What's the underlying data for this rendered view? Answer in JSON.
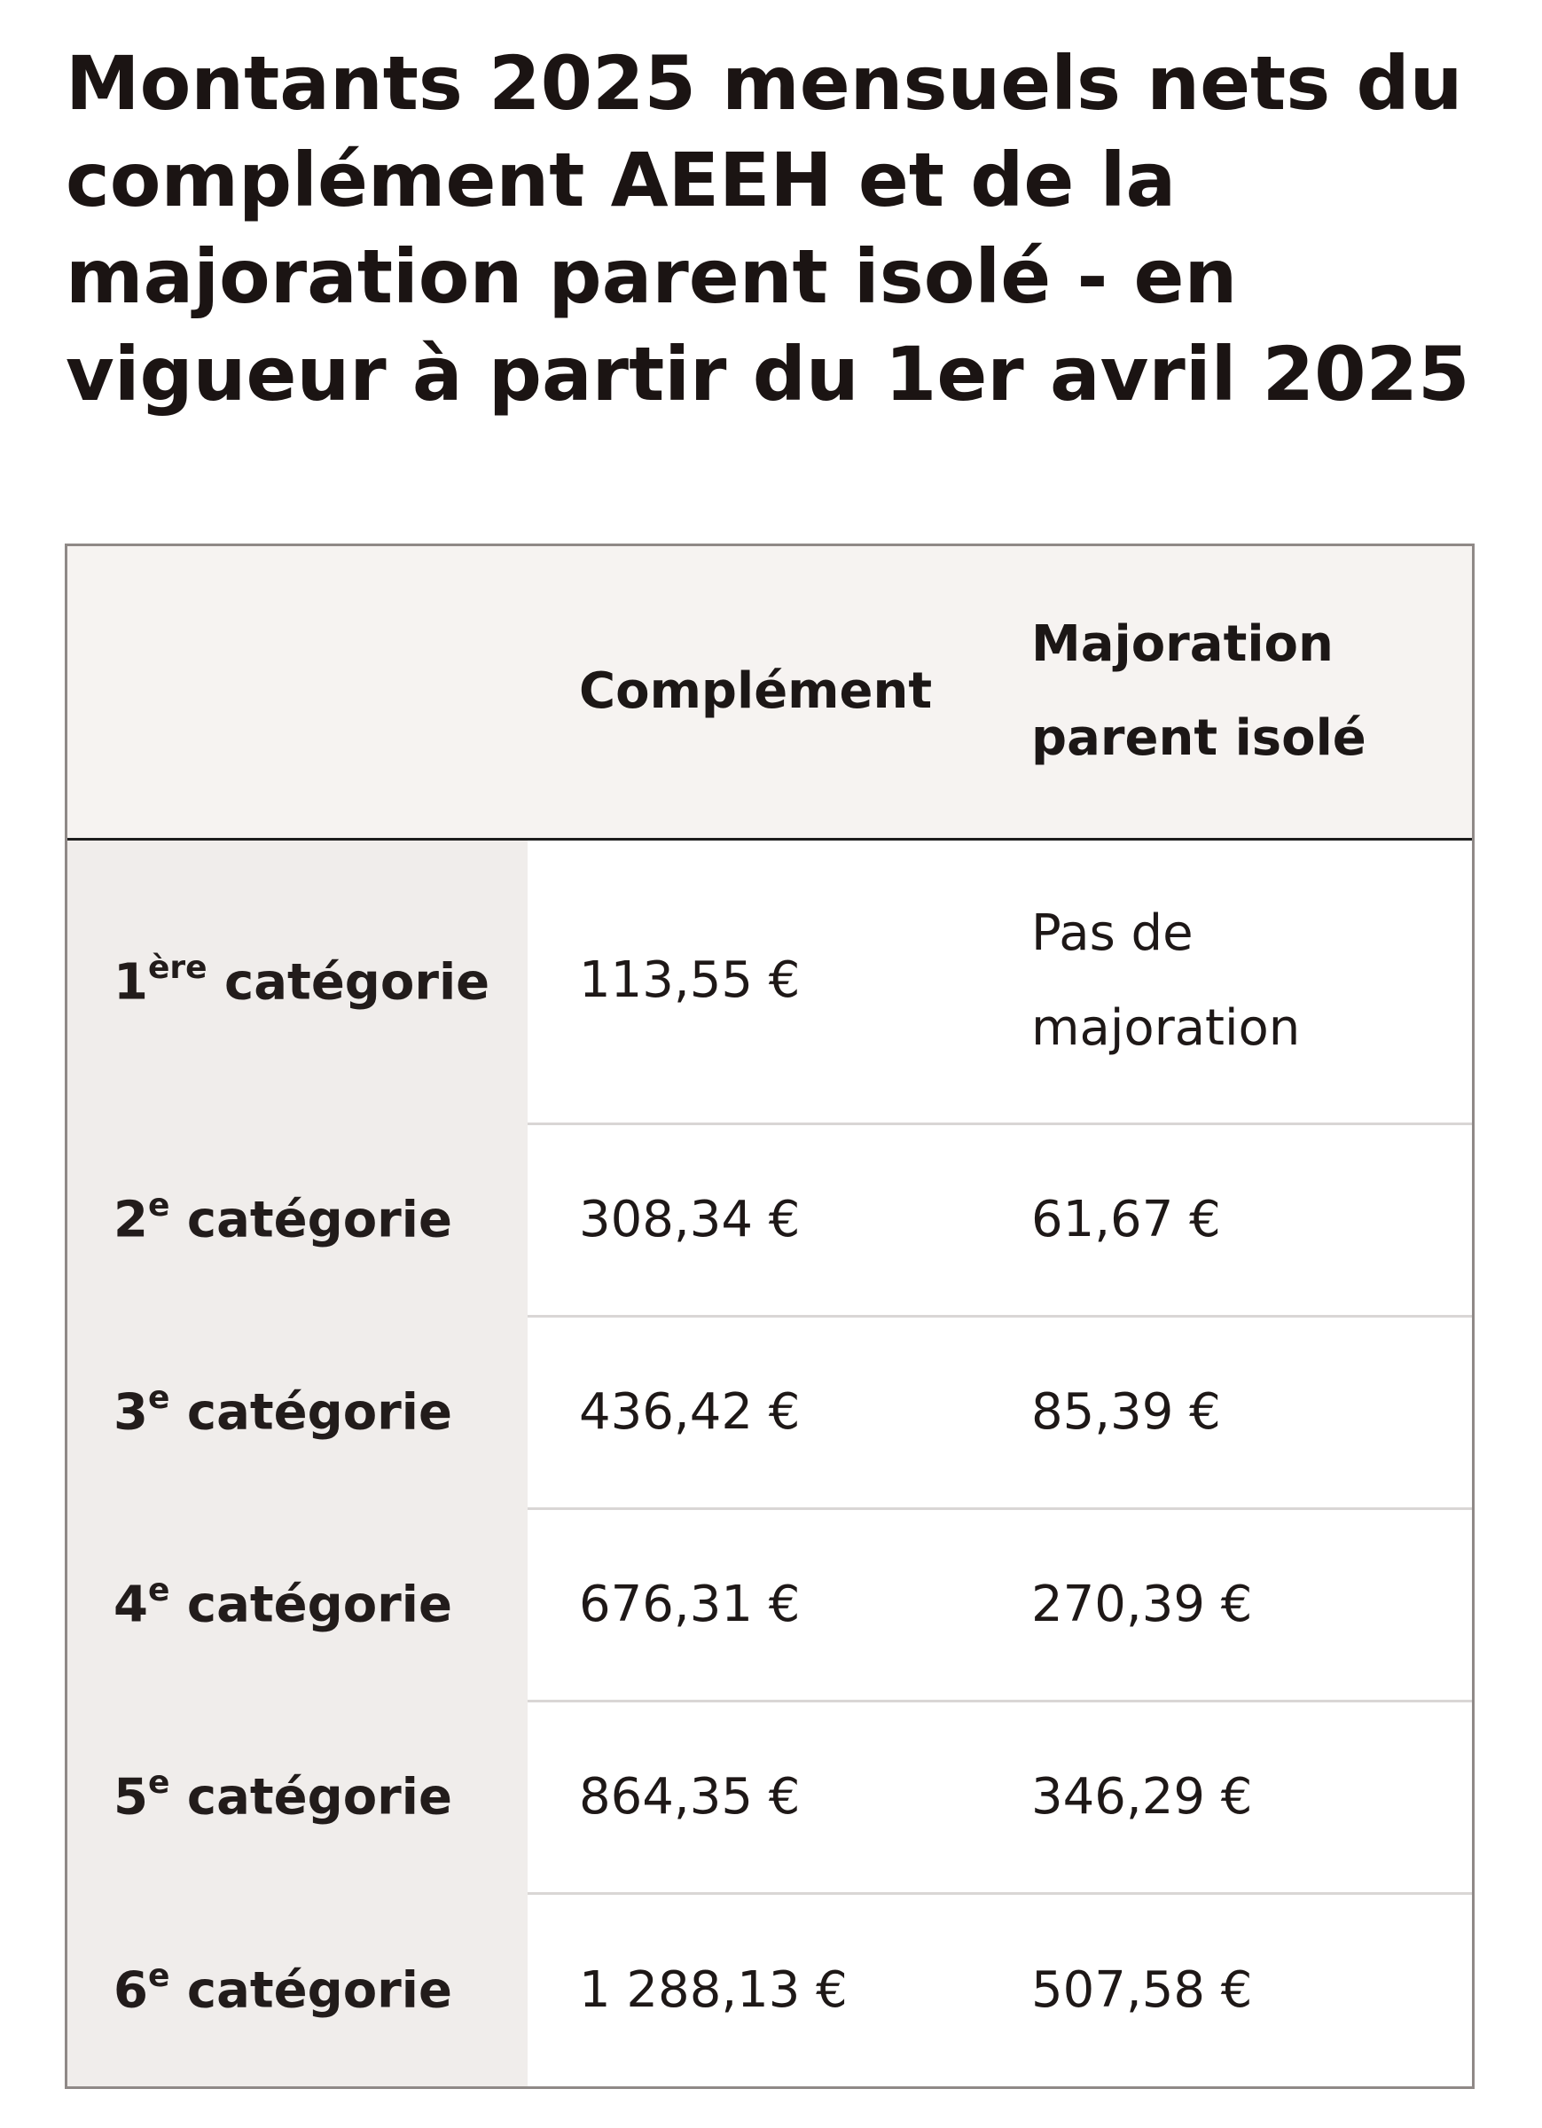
{
  "title": "Montants 2025 mensuels nets du complément AEEH et de la majoration parent isolé - en vigueur à partir du 1er avril 2025",
  "table": {
    "headers": [
      "",
      "Complément",
      "Majoration parent isolé"
    ],
    "rows": [
      {
        "num": "1",
        "suffix": "ère",
        "label": " catégorie",
        "complement": "113,55 €",
        "majoration": "Pas de majoration"
      },
      {
        "num": "2",
        "suffix": "e",
        "label": " catégorie",
        "complement": "308,34 €",
        "majoration": "61,67 €"
      },
      {
        "num": "3",
        "suffix": "e",
        "label": " catégorie",
        "complement": "436,42 €",
        "majoration": "85,39 €"
      },
      {
        "num": "4",
        "suffix": "e",
        "label": " catégorie",
        "complement": "676,31 €",
        "majoration": "270,39 €"
      },
      {
        "num": "5",
        "suffix": "e",
        "label": " catégorie",
        "complement": "864,35 €",
        "majoration": "346,29 €"
      },
      {
        "num": "6",
        "suffix": "e",
        "label": " catégorie",
        "complement": "1 288,13 €",
        "majoration": "507,58 €"
      }
    ]
  }
}
